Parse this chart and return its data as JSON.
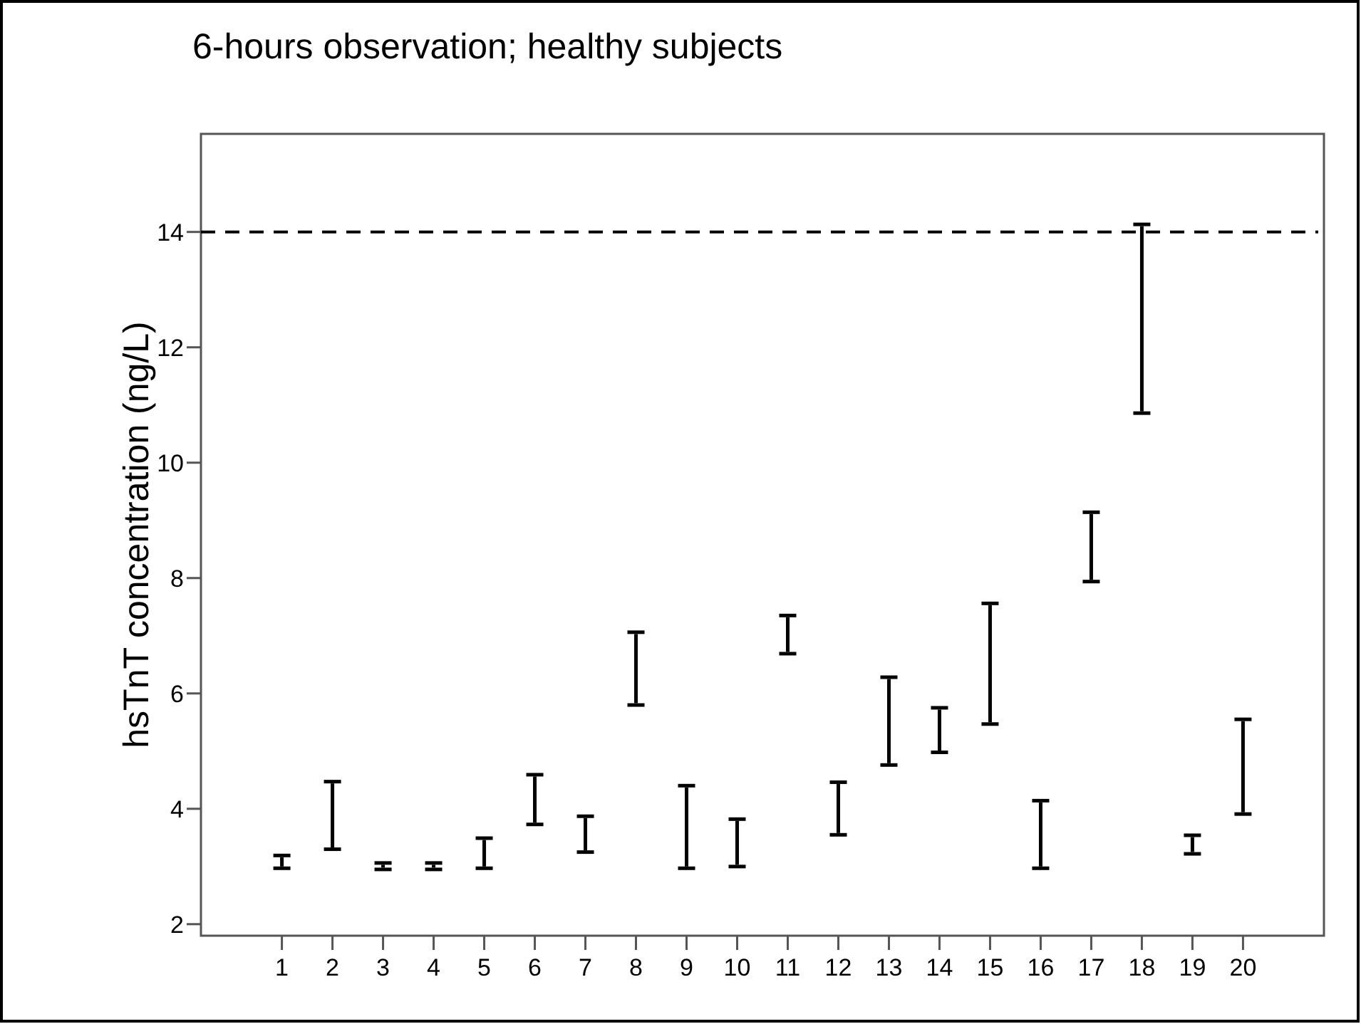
{
  "chart_data": {
    "type": "bar",
    "title": "6-hours observation; healthy subjects",
    "ylabel": "hsTnT concentration (ng/L)",
    "categories": [
      "1",
      "2",
      "3",
      "4",
      "5",
      "6",
      "7",
      "8",
      "9",
      "10",
      "11",
      "12",
      "13",
      "14",
      "15",
      "16",
      "17",
      "18",
      "19",
      "20"
    ],
    "base": [
      3.0,
      3.33,
      2.98,
      2.98,
      3.0,
      3.76,
      3.28,
      5.83,
      3.0,
      3.03,
      6.72,
      3.58,
      4.79,
      5.01,
      5.5,
      3.0,
      7.97,
      10.89,
      3.25,
      3.94
    ],
    "values": [
      0.16,
      1.11,
      0.05,
      0.05,
      0.46,
      0.8,
      0.56,
      1.2,
      1.37,
      0.76,
      0.6,
      0.85,
      1.46,
      0.71,
      2.03,
      1.11,
      1.14,
      3.21,
      0.26,
      1.58
    ],
    "color": "#000000",
    "ylim": [
      1.8,
      15.7
    ],
    "yticks": [
      2,
      4,
      6,
      8,
      10,
      12,
      14
    ],
    "grid": false,
    "ref_lines": [
      {
        "axis": "y",
        "value": 14,
        "color": "#000000",
        "line_style": "dashed"
      }
    ]
  }
}
